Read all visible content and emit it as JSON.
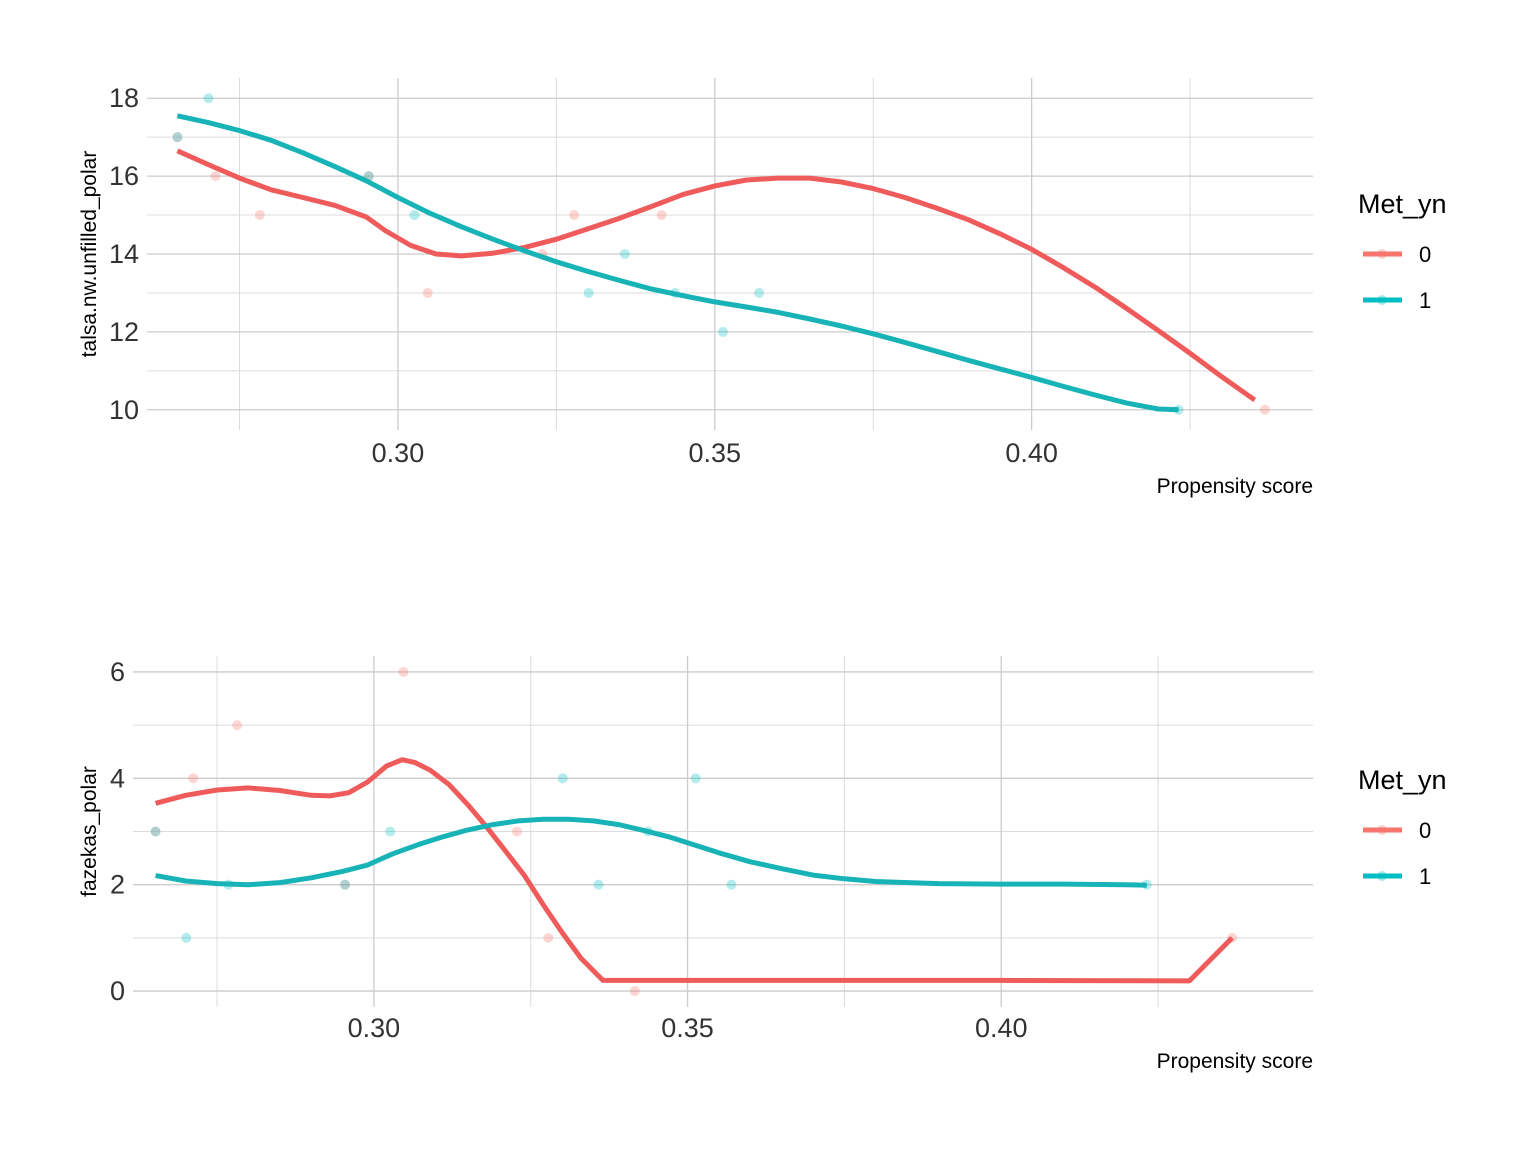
{
  "chart_data": [
    {
      "type": "scatter",
      "title": "",
      "xlabel": "Propensity score",
      "ylabel": "talsa.nw.unfilled_polar",
      "xlim": [
        0.2604,
        0.4444
      ],
      "ylim": [
        9.48,
        18.52
      ],
      "x_major_ticks": [
        0.3,
        0.35,
        0.4
      ],
      "x_tick_labels": [
        "0.30",
        "0.35",
        "0.40"
      ],
      "x_minor_ticks": [
        0.275,
        0.325,
        0.375,
        0.425
      ],
      "y_major_ticks": [
        10,
        12,
        14,
        16,
        18
      ],
      "y_tick_labels": [
        "10",
        "12",
        "14",
        "16",
        "18"
      ],
      "y_minor_ticks": [
        11,
        13,
        15,
        17
      ],
      "grid": true,
      "legend": {
        "title": "Met_yn",
        "position": "right",
        "entries": [
          {
            "label": "0",
            "color": "#F8766D"
          },
          {
            "label": "1",
            "color": "#00BFC4"
          }
        ]
      },
      "series": [
        {
          "name": "0",
          "color": "#F8766D",
          "line_color": "#EF5B5B",
          "points": [
            [
              0.2652,
              17
            ],
            [
              0.2712,
              16
            ],
            [
              0.2782,
              15
            ],
            [
              0.2954,
              16
            ],
            [
              0.3047,
              13
            ],
            [
              0.3228,
              14
            ],
            [
              0.3278,
              15
            ],
            [
              0.3416,
              15
            ],
            [
              0.4368,
              10
            ]
          ],
          "smooth": [
            [
              0.2652,
              16.65
            ],
            [
              0.27,
              16.3
            ],
            [
              0.275,
              15.95
            ],
            [
              0.28,
              15.65
            ],
            [
              0.285,
              15.45
            ],
            [
              0.29,
              15.25
            ],
            [
              0.295,
              14.95
            ],
            [
              0.298,
              14.6
            ],
            [
              0.302,
              14.22
            ],
            [
              0.306,
              14.0
            ],
            [
              0.31,
              13.95
            ],
            [
              0.315,
              14.02
            ],
            [
              0.32,
              14.17
            ],
            [
              0.325,
              14.38
            ],
            [
              0.33,
              14.65
            ],
            [
              0.335,
              14.92
            ],
            [
              0.34,
              15.22
            ],
            [
              0.345,
              15.53
            ],
            [
              0.35,
              15.75
            ],
            [
              0.355,
              15.9
            ],
            [
              0.36,
              15.95
            ],
            [
              0.365,
              15.95
            ],
            [
              0.37,
              15.85
            ],
            [
              0.375,
              15.68
            ],
            [
              0.38,
              15.45
            ],
            [
              0.385,
              15.18
            ],
            [
              0.39,
              14.88
            ],
            [
              0.395,
              14.52
            ],
            [
              0.4,
              14.12
            ],
            [
              0.405,
              13.65
            ],
            [
              0.41,
              13.15
            ],
            [
              0.415,
              12.6
            ],
            [
              0.42,
              12.03
            ],
            [
              0.425,
              11.45
            ],
            [
              0.43,
              10.85
            ],
            [
              0.4352,
              10.25
            ]
          ]
        },
        {
          "name": "1",
          "color": "#00BFC4",
          "line_color": "#17B3B6",
          "points": [
            [
              0.2652,
              17
            ],
            [
              0.2701,
              18
            ],
            [
              0.2954,
              16
            ],
            [
              0.3026,
              15
            ],
            [
              0.3301,
              13
            ],
            [
              0.3358,
              14
            ],
            [
              0.3437,
              13
            ],
            [
              0.3513,
              12
            ],
            [
              0.357,
              13
            ],
            [
              0.4232,
              10
            ]
          ],
          "smooth": [
            [
              0.2652,
              17.55
            ],
            [
              0.27,
              17.38
            ],
            [
              0.275,
              17.17
            ],
            [
              0.28,
              16.92
            ],
            [
              0.285,
              16.6
            ],
            [
              0.29,
              16.25
            ],
            [
              0.295,
              15.88
            ],
            [
              0.3,
              15.45
            ],
            [
              0.305,
              15.05
            ],
            [
              0.31,
              14.7
            ],
            [
              0.315,
              14.38
            ],
            [
              0.32,
              14.08
            ],
            [
              0.325,
              13.8
            ],
            [
              0.33,
              13.55
            ],
            [
              0.335,
              13.32
            ],
            [
              0.34,
              13.1
            ],
            [
              0.345,
              12.93
            ],
            [
              0.35,
              12.77
            ],
            [
              0.355,
              12.64
            ],
            [
              0.36,
              12.5
            ],
            [
              0.365,
              12.33
            ],
            [
              0.37,
              12.15
            ],
            [
              0.375,
              11.95
            ],
            [
              0.38,
              11.73
            ],
            [
              0.385,
              11.5
            ],
            [
              0.39,
              11.27
            ],
            [
              0.395,
              11.05
            ],
            [
              0.4,
              10.83
            ],
            [
              0.405,
              10.6
            ],
            [
              0.41,
              10.38
            ],
            [
              0.415,
              10.17
            ],
            [
              0.42,
              10.02
            ],
            [
              0.4232,
              10.0
            ]
          ]
        }
      ]
    },
    {
      "type": "scatter",
      "title": "",
      "xlabel": "Propensity score",
      "ylabel": "fazekas_polar",
      "xlim": [
        0.2616,
        0.4497
      ],
      "ylim": [
        -0.3,
        6.3
      ],
      "x_major_ticks": [
        0.3,
        0.35,
        0.4
      ],
      "x_tick_labels": [
        "0.30",
        "0.35",
        "0.40"
      ],
      "x_minor_ticks": [
        0.275,
        0.325,
        0.375,
        0.425
      ],
      "y_major_ticks": [
        0,
        2,
        4,
        6
      ],
      "y_tick_labels": [
        "0",
        "2",
        "4",
        "6"
      ],
      "y_minor_ticks": [
        1,
        3,
        5
      ],
      "grid": true,
      "legend": {
        "title": "Met_yn",
        "position": "right",
        "entries": [
          {
            "label": "0",
            "color": "#F8766D"
          },
          {
            "label": "1",
            "color": "#00BFC4"
          }
        ]
      },
      "series": [
        {
          "name": "0",
          "color": "#F8766D",
          "line_color": "#EF5B5B",
          "points": [
            [
              0.2652,
              3
            ],
            [
              0.2712,
              4
            ],
            [
              0.2782,
              5
            ],
            [
              0.2954,
              2
            ],
            [
              0.3047,
              6
            ],
            [
              0.3228,
              3
            ],
            [
              0.3278,
              1
            ],
            [
              0.3416,
              0
            ],
            [
              0.4368,
              1
            ]
          ],
          "smooth": [
            [
              0.2652,
              3.53
            ],
            [
              0.27,
              3.68
            ],
            [
              0.275,
              3.78
            ],
            [
              0.28,
              3.82
            ],
            [
              0.285,
              3.77
            ],
            [
              0.29,
              3.68
            ],
            [
              0.293,
              3.67
            ],
            [
              0.296,
              3.73
            ],
            [
              0.299,
              3.93
            ],
            [
              0.302,
              4.23
            ],
            [
              0.3045,
              4.35
            ],
            [
              0.3065,
              4.3
            ],
            [
              0.309,
              4.15
            ],
            [
              0.312,
              3.88
            ],
            [
              0.315,
              3.5
            ],
            [
              0.318,
              3.08
            ],
            [
              0.321,
              2.63
            ],
            [
              0.324,
              2.17
            ],
            [
              0.327,
              1.62
            ],
            [
              0.33,
              1.1
            ],
            [
              0.333,
              0.62
            ],
            [
              0.3365,
              0.2
            ],
            [
              0.35,
              0.2
            ],
            [
              0.4,
              0.2
            ],
            [
              0.43,
              0.19
            ],
            [
              0.4368,
              1.0
            ]
          ]
        },
        {
          "name": "1",
          "color": "#00BFC4",
          "line_color": "#17B3B6",
          "points": [
            [
              0.2652,
              3
            ],
            [
              0.2701,
              1
            ],
            [
              0.2768,
              2
            ],
            [
              0.2954,
              2
            ],
            [
              0.3026,
              3
            ],
            [
              0.3301,
              4
            ],
            [
              0.3358,
              2
            ],
            [
              0.3437,
              3
            ],
            [
              0.3513,
              4
            ],
            [
              0.357,
              2
            ],
            [
              0.4232,
              2
            ]
          ],
          "smooth": [
            [
              0.2652,
              2.17
            ],
            [
              0.27,
              2.07
            ],
            [
              0.275,
              2.02
            ],
            [
              0.28,
              2.0
            ],
            [
              0.285,
              2.04
            ],
            [
              0.29,
              2.13
            ],
            [
              0.295,
              2.25
            ],
            [
              0.299,
              2.37
            ],
            [
              0.303,
              2.58
            ],
            [
              0.307,
              2.75
            ],
            [
              0.311,
              2.9
            ],
            [
              0.315,
              3.03
            ],
            [
              0.319,
              3.13
            ],
            [
              0.323,
              3.2
            ],
            [
              0.327,
              3.23
            ],
            [
              0.331,
              3.23
            ],
            [
              0.335,
              3.2
            ],
            [
              0.339,
              3.13
            ],
            [
              0.343,
              3.02
            ],
            [
              0.347,
              2.9
            ],
            [
              0.351,
              2.75
            ],
            [
              0.355,
              2.6
            ],
            [
              0.36,
              2.43
            ],
            [
              0.365,
              2.3
            ],
            [
              0.37,
              2.18
            ],
            [
              0.375,
              2.11
            ],
            [
              0.38,
              2.06
            ],
            [
              0.39,
              2.02
            ],
            [
              0.4,
              2.01
            ],
            [
              0.41,
              2.01
            ],
            [
              0.42,
              2.0
            ],
            [
              0.4232,
              1.99
            ]
          ]
        }
      ]
    }
  ]
}
